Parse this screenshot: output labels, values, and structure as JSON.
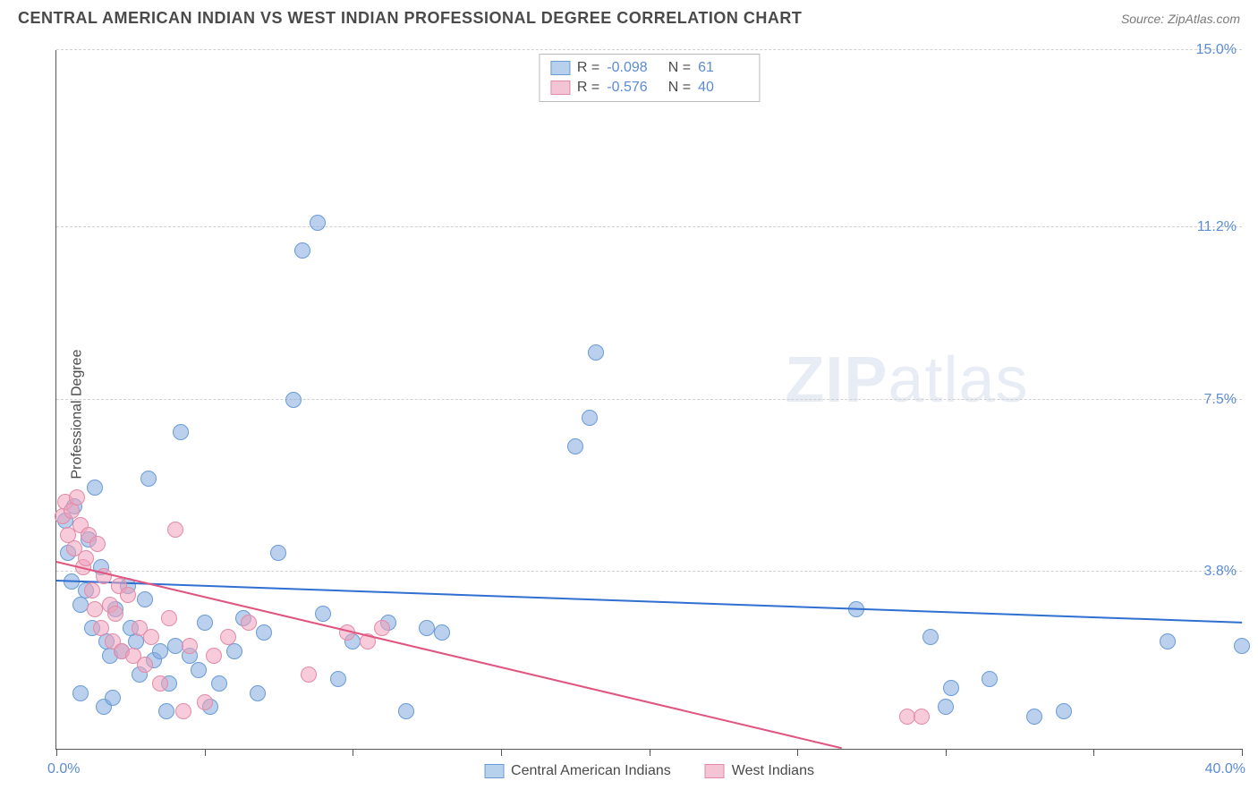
{
  "header": {
    "title": "CENTRAL AMERICAN INDIAN VS WEST INDIAN PROFESSIONAL DEGREE CORRELATION CHART",
    "source_prefix": "Source: ",
    "source_name": "ZipAtlas.com"
  },
  "ylabel": "Professional Degree",
  "watermark": {
    "zip": "ZIP",
    "atlas": "atlas"
  },
  "chart": {
    "type": "scatter",
    "background_color": "#ffffff",
    "grid_color": "#d0d0d0",
    "axis_color": "#555555",
    "xlim": [
      0.0,
      40.0
    ],
    "ylim": [
      0.0,
      15.0
    ],
    "x_ticks_positions": [
      0,
      5,
      10,
      15,
      20,
      25,
      30,
      35,
      40
    ],
    "y_gridlines": [
      3.8,
      7.5,
      11.2,
      15.0
    ],
    "y_tick_labels": [
      "3.8%",
      "7.5%",
      "11.2%",
      "15.0%"
    ],
    "x_axis_label_left": "0.0%",
    "x_axis_label_right": "40.0%",
    "y_axis_label_color": "#5b8bd4",
    "marker_radius": 9,
    "marker_border_width": 1.2,
    "trendline_width": 2,
    "series": [
      {
        "id": "central_american_indians",
        "label": "Central American Indians",
        "fill_color": "rgba(130,170,220,0.55)",
        "stroke_color": "#6a9bd8",
        "trend_color": "#2f6fd0",
        "swatch_fill": "#b7d0ec",
        "swatch_border": "#6a9bd8",
        "R": "-0.098",
        "N": "61",
        "trendline": {
          "x1": 0.0,
          "y1": 3.6,
          "x2": 40.0,
          "y2": 2.7
        },
        "points": [
          [
            0.3,
            4.9
          ],
          [
            0.4,
            4.2
          ],
          [
            0.5,
            3.6
          ],
          [
            0.6,
            5.2
          ],
          [
            0.8,
            3.1
          ],
          [
            0.8,
            1.2
          ],
          [
            1.0,
            3.4
          ],
          [
            1.1,
            4.5
          ],
          [
            1.2,
            2.6
          ],
          [
            1.3,
            5.6
          ],
          [
            1.5,
            3.9
          ],
          [
            1.6,
            0.9
          ],
          [
            1.7,
            2.3
          ],
          [
            1.8,
            2.0
          ],
          [
            1.9,
            1.1
          ],
          [
            2.0,
            3.0
          ],
          [
            2.2,
            2.1
          ],
          [
            2.4,
            3.5
          ],
          [
            2.5,
            2.6
          ],
          [
            2.7,
            2.3
          ],
          [
            2.8,
            1.6
          ],
          [
            3.0,
            3.2
          ],
          [
            3.1,
            5.8
          ],
          [
            3.3,
            1.9
          ],
          [
            3.5,
            2.1
          ],
          [
            3.7,
            0.8
          ],
          [
            3.8,
            1.4
          ],
          [
            4.0,
            2.2
          ],
          [
            4.2,
            6.8
          ],
          [
            4.5,
            2.0
          ],
          [
            4.8,
            1.7
          ],
          [
            5.0,
            2.7
          ],
          [
            5.2,
            0.9
          ],
          [
            5.5,
            1.4
          ],
          [
            6.0,
            2.1
          ],
          [
            6.3,
            2.8
          ],
          [
            6.8,
            1.2
          ],
          [
            7.0,
            2.5
          ],
          [
            7.5,
            4.2
          ],
          [
            8.0,
            7.5
          ],
          [
            8.3,
            10.7
          ],
          [
            8.8,
            11.3
          ],
          [
            9.0,
            2.9
          ],
          [
            9.5,
            1.5
          ],
          [
            10.0,
            2.3
          ],
          [
            11.2,
            2.7
          ],
          [
            11.8,
            0.8
          ],
          [
            12.5,
            2.6
          ],
          [
            13.0,
            2.5
          ],
          [
            17.5,
            6.5
          ],
          [
            18.0,
            7.1
          ],
          [
            18.2,
            8.5
          ],
          [
            27.0,
            3.0
          ],
          [
            29.5,
            2.4
          ],
          [
            30.0,
            0.9
          ],
          [
            30.2,
            1.3
          ],
          [
            31.5,
            1.5
          ],
          [
            33.0,
            0.7
          ],
          [
            34.0,
            0.8
          ],
          [
            37.5,
            2.3
          ],
          [
            40.0,
            2.2
          ]
        ]
      },
      {
        "id": "west_indians",
        "label": "West Indians",
        "fill_color": "rgba(240,160,185,0.55)",
        "stroke_color": "#e28aa8",
        "trend_color": "#e0557f",
        "swatch_fill": "#f3c5d4",
        "swatch_border": "#e28aa8",
        "R": "-0.576",
        "N": "40",
        "trendline": {
          "x1": 0.0,
          "y1": 4.0,
          "x2": 26.5,
          "y2": 0.0
        },
        "points": [
          [
            0.2,
            5.0
          ],
          [
            0.3,
            5.3
          ],
          [
            0.4,
            4.6
          ],
          [
            0.5,
            5.1
          ],
          [
            0.6,
            4.3
          ],
          [
            0.7,
            5.4
          ],
          [
            0.8,
            4.8
          ],
          [
            0.9,
            3.9
          ],
          [
            1.0,
            4.1
          ],
          [
            1.1,
            4.6
          ],
          [
            1.2,
            3.4
          ],
          [
            1.3,
            3.0
          ],
          [
            1.4,
            4.4
          ],
          [
            1.5,
            2.6
          ],
          [
            1.6,
            3.7
          ],
          [
            1.8,
            3.1
          ],
          [
            1.9,
            2.3
          ],
          [
            2.0,
            2.9
          ],
          [
            2.1,
            3.5
          ],
          [
            2.2,
            2.1
          ],
          [
            2.4,
            3.3
          ],
          [
            2.6,
            2.0
          ],
          [
            2.8,
            2.6
          ],
          [
            3.0,
            1.8
          ],
          [
            3.2,
            2.4
          ],
          [
            3.5,
            1.4
          ],
          [
            3.8,
            2.8
          ],
          [
            4.0,
            4.7
          ],
          [
            4.3,
            0.8
          ],
          [
            4.5,
            2.2
          ],
          [
            5.0,
            1.0
          ],
          [
            5.3,
            2.0
          ],
          [
            5.8,
            2.4
          ],
          [
            6.5,
            2.7
          ],
          [
            8.5,
            1.6
          ],
          [
            9.8,
            2.5
          ],
          [
            10.5,
            2.3
          ],
          [
            11.0,
            2.6
          ],
          [
            28.7,
            0.7
          ],
          [
            29.2,
            0.7
          ]
        ]
      }
    ]
  },
  "legend_bottom": [
    {
      "label": "Central American Indians",
      "fill": "#b7d0ec",
      "border": "#6a9bd8"
    },
    {
      "label": "West Indians",
      "fill": "#f3c5d4",
      "border": "#e28aa8"
    }
  ]
}
